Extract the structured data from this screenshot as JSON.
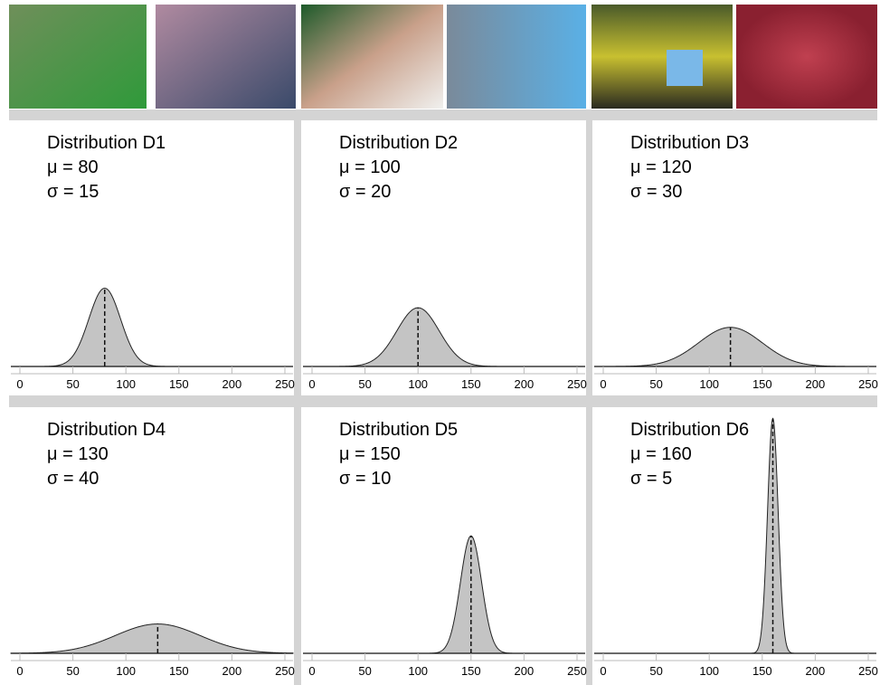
{
  "chart_data": [
    {
      "type": "density",
      "title": "Distribution D1",
      "mean": {
        "value": 80,
        "label": "μ = 80"
      },
      "sd": {
        "value": 15,
        "label": "σ = 15"
      },
      "color": "#c4c4c4",
      "xlim": [
        0,
        250
      ],
      "xticks": [
        0,
        50,
        100,
        150,
        200,
        250
      ],
      "ylim": [
        0,
        0.083
      ]
    },
    {
      "type": "density",
      "title": "Distribution D2",
      "mean": {
        "value": 100,
        "label": "μ = 100"
      },
      "sd": {
        "value": 20,
        "label": "σ = 20"
      },
      "color": "#c4c4c4",
      "xlim": [
        0,
        250
      ],
      "xticks": [
        0,
        50,
        100,
        150,
        200,
        250
      ],
      "ylim": [
        0,
        0.083
      ]
    },
    {
      "type": "density",
      "title": "Distribution D3",
      "mean": {
        "value": 120,
        "label": "μ = 120"
      },
      "sd": {
        "value": 30,
        "label": "σ = 30"
      },
      "color": "#c4c4c4",
      "xlim": [
        0,
        250
      ],
      "xticks": [
        0,
        50,
        100,
        150,
        200,
        250
      ],
      "ylim": [
        0,
        0.083
      ]
    },
    {
      "type": "density",
      "title": "Distribution D4",
      "mean": {
        "value": 130,
        "label": "μ = 130"
      },
      "sd": {
        "value": 40,
        "label": "σ = 40"
      },
      "color": "#c4c4c4",
      "xlim": [
        0,
        250
      ],
      "xticks": [
        0,
        50,
        100,
        150,
        200,
        250
      ],
      "ylim": [
        0,
        0.083
      ]
    },
    {
      "type": "density",
      "title": "Distribution D5",
      "mean": {
        "value": 150,
        "label": "μ = 150"
      },
      "sd": {
        "value": 10,
        "label": "σ = 10"
      },
      "color": "#c4c4c4",
      "xlim": [
        0,
        250
      ],
      "xticks": [
        0,
        50,
        100,
        150,
        200,
        250
      ],
      "ylim": [
        0,
        0.083
      ]
    },
    {
      "type": "density",
      "title": "Distribution D6",
      "mean": {
        "value": 160,
        "label": "μ = 160"
      },
      "sd": {
        "value": 5,
        "label": "σ = 5"
      },
      "color": "#c4c4c4",
      "xlim": [
        0,
        250
      ],
      "xticks": [
        0,
        50,
        100,
        150,
        200,
        250
      ],
      "ylim": [
        0,
        0.083
      ]
    }
  ]
}
